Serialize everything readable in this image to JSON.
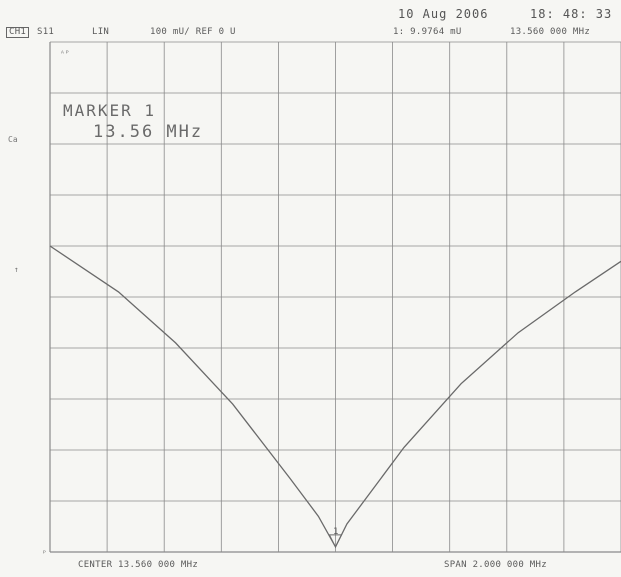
{
  "header": {
    "channel": "CH1",
    "parameter": "S11",
    "format": "LIN",
    "scale": "100 mU/ REF 0 U",
    "date": "10 Aug 2006",
    "time": "18: 48: 33",
    "marker_readout": "1: 9.9764 mU",
    "marker_freq": "13.560 000 MHz"
  },
  "side_labels": {
    "top": "ᴬᴾ",
    "ca": "Ca",
    "ref": "↑",
    "bottom": "ᴾ"
  },
  "marker": {
    "title": "MARKER 1",
    "value": "13.56 MHz",
    "label": "1"
  },
  "footer": {
    "center": "CENTER 13.560 000 MHz",
    "span": "SPAN 2.000 000 MHz"
  },
  "colors": {
    "grid": "#8a8a8a",
    "trace": "#6a6a6a",
    "background": "#f6f6f3"
  },
  "chart_data": {
    "type": "line",
    "title": "",
    "xlabel": "",
    "ylabel": "",
    "x_unit": "MHz",
    "y_unit": "mU",
    "xlim": [
      12.56,
      14.56
    ],
    "ylim": [
      0,
      1000
    ],
    "grid": true,
    "divisions_x": 10,
    "divisions_y": 10,
    "series": [
      {
        "x": [
          12.56,
          12.8,
          13.0,
          13.2,
          13.4,
          13.5,
          13.56,
          13.6,
          13.8,
          14.0,
          14.2,
          14.4,
          14.56
        ],
        "values": [
          600,
          510,
          410,
          290,
          145,
          70,
          10,
          55,
          205,
          330,
          430,
          510,
          570
        ]
      }
    ],
    "markers": [
      {
        "label": "1",
        "x": 13.56,
        "y": 9.9764
      }
    ]
  }
}
